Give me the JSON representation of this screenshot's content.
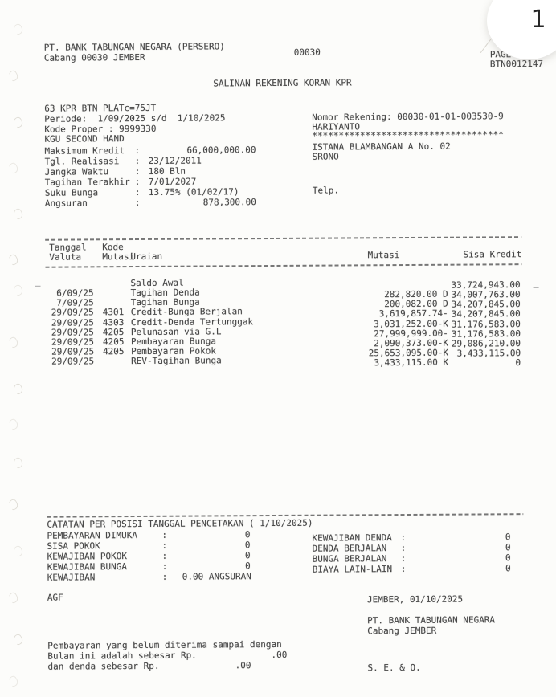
{
  "overlay": {
    "page_number": "1"
  },
  "header": {
    "company": "PT. BANK TABUNGAN NEGARA (PERSERO)",
    "branch": "Cabang 00030 JEMBER",
    "center_code": "00030",
    "page_label": "PAGE  1",
    "doc_code": "BTN0012147",
    "title": "SALINAN REKENING KORAN KPR"
  },
  "account": {
    "product_line": "63 KPR BTN PLATc=75JT",
    "periode_line": "Periode:  1/09/2025 s/d  1/10/2025",
    "kode_proper_line": "Kode Proper : 9999330",
    "scheme_line": "KGU SECOND HAND",
    "details": [
      {
        "label": "Maksimum Kredit",
        "value": "66,000,000.00"
      },
      {
        "label": "Tgl. Realisasi",
        "value": "23/12/2011"
      },
      {
        "label": "Jangka Waktu",
        "value": "180 Bln"
      },
      {
        "label": "Tagihan Terakhir",
        "value": "7/01/2027"
      },
      {
        "label": "Suku Bunga",
        "value": "13.75% (01/02/17)"
      },
      {
        "label": "Angsuran",
        "value": "878,300.00"
      }
    ]
  },
  "customer": {
    "account_number_line": "Nomor Rekening: 00030-01-01-003530-9",
    "name": "HARIYANTO",
    "stars": "************************************",
    "address": "ISTANA BLAMBANGAN A No. 02",
    "city": "SRONO",
    "phone_label": "Telp."
  },
  "table": {
    "header": {
      "col_tanggal": "Tanggal",
      "col_kode": "Kode",
      "col_valuta": "Valuta",
      "col_mutasi_kode": "Mutasi",
      "col_uraian": "Uraian",
      "col_mutasi": "Mutasi",
      "col_sisa": "Sisa Kredit"
    },
    "rows": [
      {
        "date": "",
        "code": "",
        "desc": "Saldo Awal",
        "mutasi": "",
        "sisa": "33,724,943.00"
      },
      {
        "date": "6/09/25",
        "code": "",
        "desc": "Tagihan Denda",
        "mutasi": "282,820.00 D",
        "sisa": "34,007,763.00"
      },
      {
        "date": "7/09/25",
        "code": "",
        "desc": "Tagihan Bunga",
        "mutasi": "200,082.00 D",
        "sisa": "34,207,845.00"
      },
      {
        "date": "29/09/25",
        "code": "4301",
        "desc": "Credit-Bunga Berjalan",
        "mutasi": "3,619,857.74-",
        "sisa": "34,207,845.00"
      },
      {
        "date": "29/09/25",
        "code": "4303",
        "desc": "Credit-Denda Tertunggak",
        "mutasi": "3,031,252.00-K",
        "sisa": "31,176,583.00"
      },
      {
        "date": "29/09/25",
        "code": "4205",
        "desc": "Pelunasan via G.L",
        "mutasi": "27,999,999.00-",
        "sisa": "31,176,583.00"
      },
      {
        "date": "29/09/25",
        "code": "4205",
        "desc": "Pembayaran Bunga",
        "mutasi": "2,090,373.00-K",
        "sisa": "29,086,210.00"
      },
      {
        "date": "29/09/25",
        "code": "4205",
        "desc": "Pembayaran Pokok",
        "mutasi": "25,653,095.00-K",
        "sisa": "3,433,115.00"
      },
      {
        "date": "29/09/25",
        "code": "",
        "desc": "REV-Tagihan Bunga",
        "mutasi": "3,433,115.00 K",
        "sisa": "0"
      }
    ]
  },
  "catatan": {
    "title": "CATATAN PER POSISI TANGGAL PENCETAKAN ( 1/10/2025)",
    "left": [
      {
        "label": "PEMBAYARAN DIMUKA",
        "value": "0"
      },
      {
        "label": "SISA POKOK",
        "value": "0"
      },
      {
        "label": "KEWAJIBAN POKOK",
        "value": "0"
      },
      {
        "label": "KEWAJIBAN BUNGA",
        "value": "0"
      }
    ],
    "kewajiban_label": "KEWAJIBAN",
    "kewajiban_value": "0.00 ANGSURAN",
    "right": [
      {
        "label": "KEWAJIBAN DENDA",
        "value": "0"
      },
      {
        "label": "DENDA BERJALAN",
        "value": "0"
      },
      {
        "label": "BUNGA BERJALAN",
        "value": "0"
      },
      {
        "label": "BIAYA LAIN-LAIN",
        "value": "0"
      }
    ]
  },
  "footer": {
    "agf": "AGF",
    "place_date": "JEMBER, 01/10/2025",
    "sign_company": "PT. BANK TABUNGAN NEGARA",
    "sign_branch": "Cabang JEMBER",
    "note_line1": "Pembayaran yang belum diterima sampai dengan",
    "note_line2_label": "Bulan ini adalah sebesar Rp.",
    "note_line2_value": ".00",
    "note_line3_label": "dan denda sebesar Rp.",
    "note_line3_value": ".00",
    "seo": "S. E. & O."
  }
}
